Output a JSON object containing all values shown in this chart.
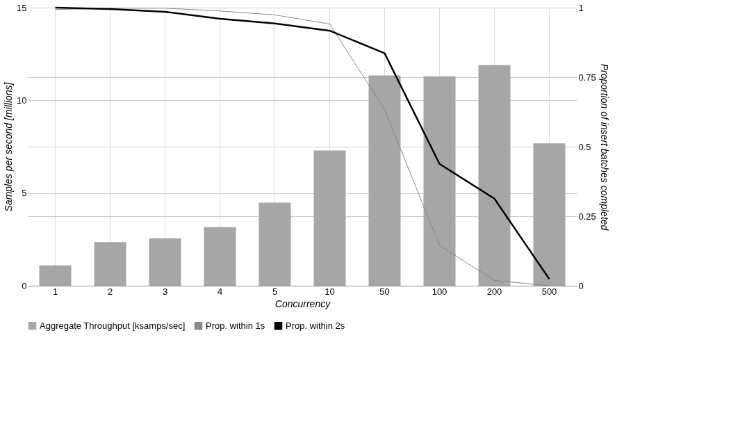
{
  "chart_data": {
    "type": "bar",
    "xlabel": "Concurrency",
    "ylabel": "Samples per second [millions]",
    "y2label": "Proportion of insert batches completed",
    "categories": [
      "1",
      "2",
      "3",
      "4",
      "5",
      "10",
      "50",
      "100",
      "200",
      "500"
    ],
    "series": [
      {
        "name": "Aggregate Throughput [ksamps/sec]",
        "color": "#a6a6a6",
        "values": [
          1.1,
          2.35,
          2.56,
          3.16,
          4.48,
          7.29,
          11.34,
          11.3,
          11.91,
          7.68
        ]
      },
      {
        "name": "Prop. within 1s",
        "type": "line",
        "axis": "y2",
        "color": "#888888",
        "values": [
          0.993,
          0.998,
          0.998,
          0.988,
          0.974,
          0.941,
          0.633,
          0.145,
          0.019,
          0.0
        ]
      },
      {
        "name": "Prop. within 2s",
        "type": "line",
        "axis": "y2",
        "color": "#000000",
        "values": [
          1.0,
          0.995,
          0.985,
          0.96,
          0.943,
          0.917,
          0.836,
          0.438,
          0.313,
          0.024
        ]
      }
    ],
    "ylim": [
      0,
      15
    ],
    "yticks": [
      0,
      5,
      10,
      15
    ],
    "y2lim": [
      0,
      1
    ],
    "y2ticks": [
      0,
      0.25,
      0.5,
      0.75,
      1
    ],
    "grid": true,
    "legend": "bottom"
  }
}
